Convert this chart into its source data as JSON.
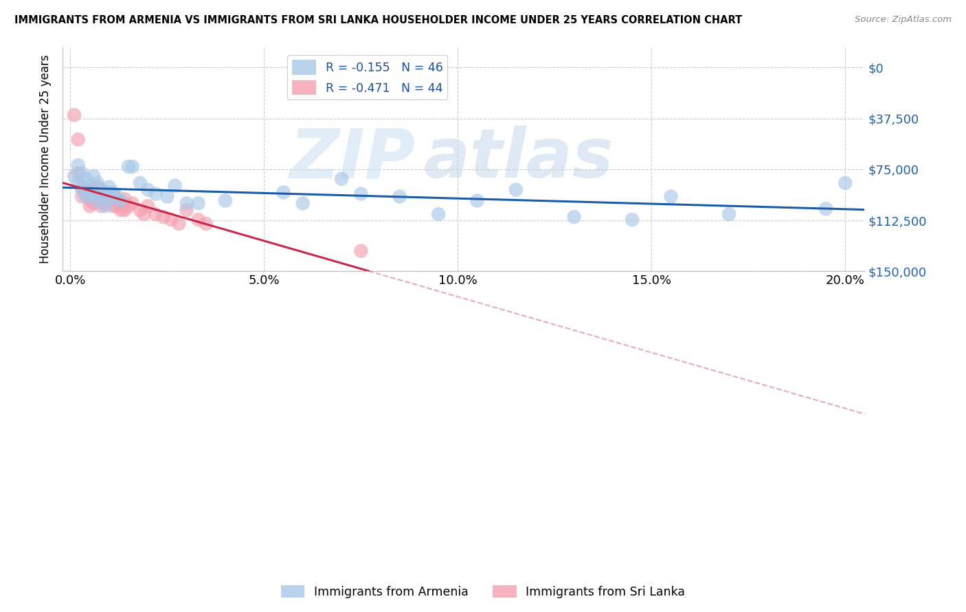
{
  "title": "IMMIGRANTS FROM ARMENIA VS IMMIGRANTS FROM SRI LANKA HOUSEHOLDER INCOME UNDER 25 YEARS CORRELATION CHART",
  "source": "Source: ZipAtlas.com",
  "xlabel_ticks": [
    "0.0%",
    "5.0%",
    "10.0%",
    "15.0%",
    "20.0%"
  ],
  "xlabel_tick_vals": [
    0.0,
    0.05,
    0.1,
    0.15,
    0.2
  ],
  "ylabel": "Householder Income Under 25 years",
  "ylabel_ticks": [
    "$150,000",
    "$112,500",
    "$75,000",
    "$37,500",
    "$0"
  ],
  "ylabel_tick_vals": [
    150000,
    112500,
    75000,
    37500,
    0
  ],
  "ylim": [
    0,
    165000
  ],
  "xlim": [
    -0.002,
    0.205
  ],
  "legend1_label": "Immigrants from Armenia",
  "legend2_label": "Immigrants from Sri Lanka",
  "armenia_color": "#a8c8e8",
  "srilanka_color": "#f4a0b0",
  "armenia_edge_color": "#7aafd4",
  "srilanka_edge_color": "#e8788a",
  "armenia_line_color": "#1a5ca8",
  "srilanka_line_color": "#c8294a",
  "r_armenia": -0.155,
  "n_armenia": 46,
  "r_srilanka": -0.471,
  "n_srilanka": 44,
  "watermark_zip": "ZIP",
  "watermark_atlas": "atlas",
  "armenia_x": [
    0.001,
    0.002,
    0.002,
    0.003,
    0.003,
    0.004,
    0.004,
    0.005,
    0.005,
    0.006,
    0.006,
    0.007,
    0.007,
    0.008,
    0.008,
    0.009,
    0.009,
    0.01,
    0.01,
    0.011,
    0.012,
    0.013,
    0.015,
    0.016,
    0.018,
    0.02,
    0.022,
    0.025,
    0.027,
    0.03,
    0.033,
    0.04,
    0.055,
    0.06,
    0.07,
    0.075,
    0.085,
    0.095,
    0.105,
    0.115,
    0.13,
    0.145,
    0.155,
    0.17,
    0.195,
    0.2
  ],
  "armenia_y": [
    70000,
    78000,
    65000,
    72000,
    60000,
    68000,
    55000,
    63000,
    57000,
    70000,
    58000,
    65000,
    52000,
    60000,
    55000,
    57000,
    48000,
    62000,
    53000,
    58000,
    55000,
    52000,
    77000,
    77000,
    65000,
    60000,
    57000,
    55000,
    63000,
    50000,
    50000,
    52000,
    58000,
    50000,
    68000,
    57000,
    55000,
    42000,
    52000,
    60000,
    40000,
    38000,
    55000,
    42000,
    46000,
    65000
  ],
  "srilanka_x": [
    0.001,
    0.002,
    0.002,
    0.003,
    0.003,
    0.004,
    0.004,
    0.005,
    0.005,
    0.005,
    0.006,
    0.006,
    0.006,
    0.007,
    0.007,
    0.007,
    0.008,
    0.008,
    0.008,
    0.009,
    0.009,
    0.01,
    0.01,
    0.011,
    0.011,
    0.012,
    0.012,
    0.013,
    0.013,
    0.014,
    0.014,
    0.015,
    0.016,
    0.018,
    0.019,
    0.02,
    0.022,
    0.024,
    0.026,
    0.028,
    0.03,
    0.033,
    0.035,
    0.075
  ],
  "srilanka_y": [
    115000,
    97000,
    72000,
    62000,
    55000,
    60000,
    57000,
    58000,
    53000,
    48000,
    60000,
    55000,
    50000,
    62000,
    57000,
    53000,
    55000,
    52000,
    48000,
    58000,
    50000,
    55000,
    52000,
    57000,
    48000,
    53000,
    48000,
    50000,
    45000,
    53000,
    45000,
    48000,
    50000,
    45000,
    42000,
    48000,
    42000,
    40000,
    38000,
    35000,
    45000,
    38000,
    35000,
    15000
  ]
}
